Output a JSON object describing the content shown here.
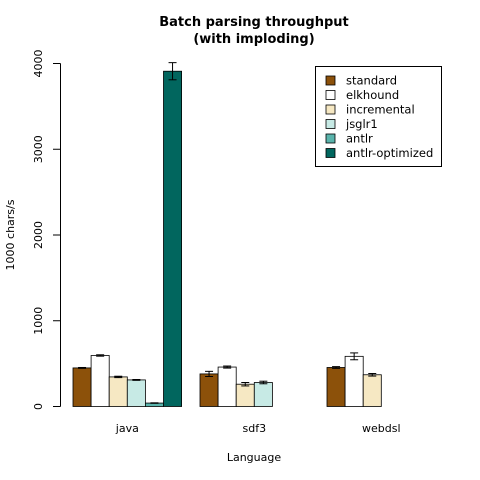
{
  "chart_data": {
    "type": "bar",
    "title": [
      "Batch parsing throughput",
      "(with imploding)"
    ],
    "xlabel": "Language",
    "ylabel": "1000 chars/s",
    "ylim": [
      0,
      4000
    ],
    "yticks": [
      0,
      1000,
      2000,
      3000,
      4000
    ],
    "categories": [
      "java",
      "sdf3",
      "webdsl"
    ],
    "legend_position": "top-right",
    "grid": false,
    "series": [
      {
        "name": "standard",
        "color": "#8c510a",
        "values": [
          450,
          380,
          455
        ],
        "errors": [
          5,
          30,
          10
        ]
      },
      {
        "name": "elkhound",
        "color": "#ffffff",
        "values": [
          595,
          460,
          585
        ],
        "errors": [
          8,
          12,
          40
        ]
      },
      {
        "name": "incremental",
        "color": "#f6e8c3",
        "values": [
          345,
          260,
          370
        ],
        "errors": [
          8,
          20,
          15
        ]
      },
      {
        "name": "jsglr1",
        "color": "#c7eae5",
        "values": [
          310,
          280,
          null
        ],
        "errors": [
          5,
          15,
          null
        ]
      },
      {
        "name": "antlr",
        "color": "#5ab4ac",
        "values": [
          40,
          null,
          null
        ],
        "errors": [
          3,
          null,
          null
        ]
      },
      {
        "name": "antlr-optimized",
        "color": "#01665e",
        "values": [
          3910,
          null,
          null
        ],
        "errors": [
          100,
          null,
          null
        ]
      }
    ]
  }
}
